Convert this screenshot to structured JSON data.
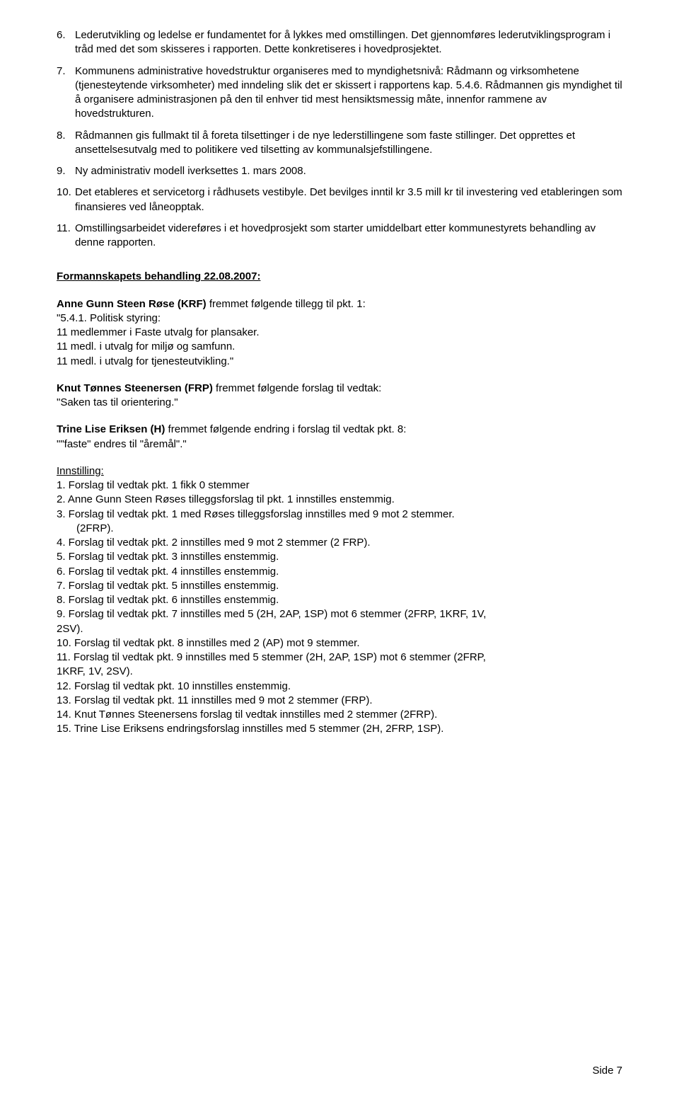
{
  "numbered": [
    {
      "n": "6.",
      "text": "Lederutvikling og ledelse er fundamentet for å lykkes med omstillingen. Det gjennomføres lederutviklingsprogram i tråd med det som skisseres i rapporten. Dette konkretiseres i hovedprosjektet."
    },
    {
      "n": "7.",
      "text": "Kommunens administrative hovedstruktur organiseres med to myndighetsnivå: Rådmann og virksomhetene (tjenesteytende virksomheter) med inndeling slik det er skissert i rapportens kap. 5.4.6. Rådmannen gis myndighet til å organisere administrasjonen på den til enhver tid mest hensiktsmessig måte, innenfor rammene av hovedstrukturen."
    },
    {
      "n": "8.",
      "text": "Rådmannen gis fullmakt til å foreta tilsettinger i de nye lederstillingene som faste stillinger. Det opprettes et ansettelsesutvalg med to politikere ved tilsetting av kommunalsjefstillingene."
    },
    {
      "n": "9.",
      "text": "Ny administrativ modell iverksettes 1. mars 2008."
    },
    {
      "n": "10.",
      "text": "Det etableres et servicetorg i rådhusets vestibyle. Det bevilges inntil kr 3.5 mill kr til investering ved etableringen som finansieres ved låneopptak."
    },
    {
      "n": "11.",
      "text": "Omstillingsarbeidet videreføres i et hovedprosjekt som starter umiddelbart etter kommunestyrets behandling av denne rapporten."
    }
  ],
  "sectionHeading": "Formannskapets behandling 22.08.2007:",
  "p1": {
    "lead": "Anne Gunn Steen Røse (KRF)",
    "leadRest": " fremmet følgende tillegg til pkt. 1:",
    "lines": [
      "\"5.4.1. Politisk styring:",
      "11 medlemmer i Faste utvalg for plansaker.",
      "11 medl. i utvalg for miljø og samfunn.",
      "11 medl. i utvalg for tjenesteutvikling.\""
    ]
  },
  "p2": {
    "lead": "Knut Tønnes Steenersen (FRP)",
    "leadRest": " fremmet følgende forslag til vedtak:",
    "lines": [
      "\"Saken tas til orientering.\""
    ]
  },
  "p3": {
    "lead": "Trine Lise Eriksen (H)",
    "leadRest": " fremmet følgende endring i forslag til vedtak pkt. 8:",
    "lines": [
      "\"\"faste\" endres til \"åremål\".\""
    ]
  },
  "innstillingLabel": "Innstilling:",
  "innstilling": [
    {
      "text": "1. Forslag til vedtak pkt. 1 fikk 0 stemmer",
      "indent": false
    },
    {
      "text": "2. Anne Gunn Steen Røses tilleggsforslag til pkt. 1 innstilles enstemmig.",
      "indent": false
    },
    {
      "text": "3. Forslag til vedtak pkt. 1 med Røses tilleggsforslag innstilles med 9 mot 2 stemmer.",
      "indent": false
    },
    {
      "text": "(2FRP).",
      "indent": true
    },
    {
      "text": "4. Forslag til vedtak pkt. 2 innstilles med 9 mot 2 stemmer (2 FRP).",
      "indent": false
    },
    {
      "text": "5. Forslag til vedtak pkt. 3 innstilles enstemmig.",
      "indent": false
    },
    {
      "text": "6. Forslag til vedtak pkt. 4 innstilles enstemmig.",
      "indent": false
    },
    {
      "text": "7. Forslag til vedtak pkt. 5 innstilles enstemmig.",
      "indent": false
    },
    {
      "text": "8. Forslag til vedtak pkt. 6 innstilles enstemmig.",
      "indent": false
    },
    {
      "text": "9. Forslag til vedtak pkt. 7 innstilles med 5 (2H, 2AP, 1SP) mot 6 stemmer (2FRP, 1KRF, 1V,",
      "indent": false
    },
    {
      "text": "2SV).",
      "indent": false
    },
    {
      "text": "10. Forslag til vedtak pkt. 8 innstilles med 2 (AP) mot 9 stemmer.",
      "indent": false
    },
    {
      "text": "11. Forslag til vedtak pkt. 9 innstilles med 5 stemmer (2H, 2AP, 1SP) mot 6 stemmer (2FRP,",
      "indent": false
    },
    {
      "text": "1KRF, 1V, 2SV).",
      "indent": false
    },
    {
      "text": "12. Forslag til vedtak pkt. 10 innstilles enstemmig.",
      "indent": false
    },
    {
      "text": "13. Forslag til vedtak pkt. 11 innstilles med 9 mot 2 stemmer (FRP).",
      "indent": false
    },
    {
      "text": "14. Knut Tønnes Steenersens forslag til vedtak innstilles med 2 stemmer (2FRP).",
      "indent": false
    },
    {
      "text": "15. Trine Lise Eriksens endringsforslag innstilles med 5 stemmer (2H, 2FRP, 1SP).",
      "indent": false
    }
  ],
  "footer": "Side  7"
}
